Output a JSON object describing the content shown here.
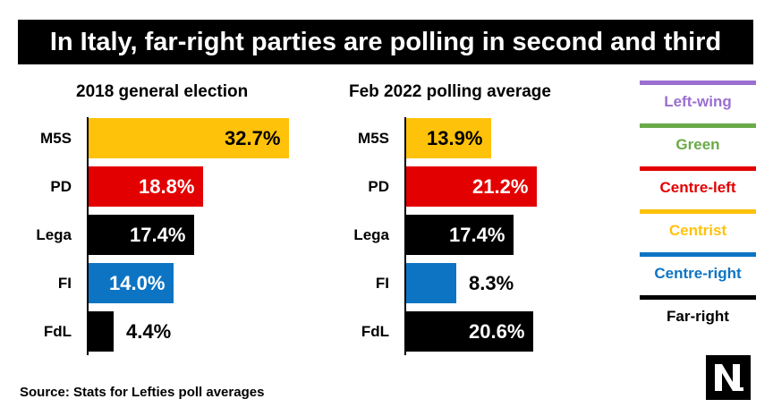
{
  "title": "In Italy, far-right parties are polling in second and third",
  "source": "Source: Stats for Lefties poll averages",
  "colors": {
    "left_wing": "#9b6fd1",
    "green": "#6aaa48",
    "centre_left": "#e20000",
    "centrist": "#ffc20a",
    "centre_right": "#0d74c4",
    "far_right": "#000000"
  },
  "legend": [
    {
      "label": "Left-wing",
      "color": "#9b6fd1"
    },
    {
      "label": "Green",
      "color": "#6aaa48"
    },
    {
      "label": "Centre-left",
      "color": "#e20000"
    },
    {
      "label": "Centrist",
      "color": "#ffc20a"
    },
    {
      "label": "Centre-right",
      "color": "#0d74c4"
    },
    {
      "label": "Far-right",
      "color": "#000000"
    }
  ],
  "logo": {
    "icon": "nl-logo-icon"
  },
  "chart_data": [
    {
      "type": "bar",
      "orientation": "horizontal",
      "title": "2018 general election",
      "categories": [
        "M5S",
        "PD",
        "Lega",
        "FI",
        "FdL"
      ],
      "values": [
        32.7,
        18.8,
        17.4,
        14.0,
        4.4
      ],
      "labels": [
        "32.7%",
        "18.8%",
        "17.4%",
        "14.0%",
        "4.4%"
      ],
      "colors": [
        "#ffc20a",
        "#e20000",
        "#000000",
        "#0d74c4",
        "#000000"
      ],
      "xlim": [
        0,
        33
      ],
      "grid": false
    },
    {
      "type": "bar",
      "orientation": "horizontal",
      "title": "Feb 2022 polling average",
      "categories": [
        "M5S",
        "PD",
        "Lega",
        "FI",
        "FdL"
      ],
      "values": [
        13.9,
        21.2,
        17.4,
        8.3,
        20.6
      ],
      "labels": [
        "13.9%",
        "21.2%",
        "17.4%",
        "8.3%",
        "20.6%"
      ],
      "colors": [
        "#ffc20a",
        "#e20000",
        "#000000",
        "#0d74c4",
        "#000000"
      ],
      "xlim": [
        0,
        33
      ],
      "grid": false
    }
  ]
}
